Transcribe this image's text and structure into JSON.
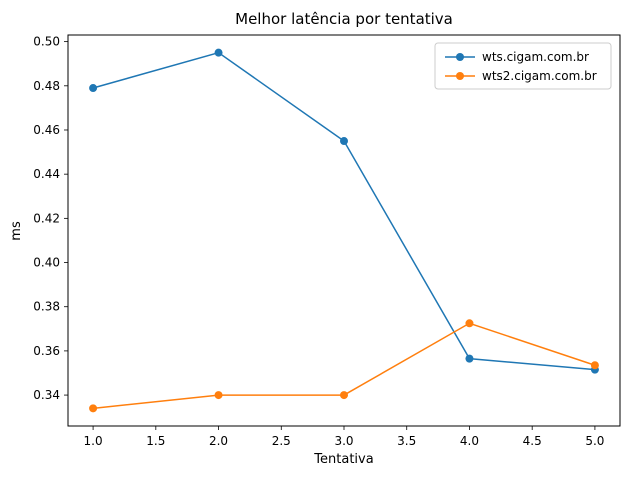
{
  "chart_data": {
    "type": "line",
    "title": "Melhor latência por tentativa",
    "xlabel": "Tentativa",
    "ylabel": "ms",
    "x": [
      1,
      2,
      3,
      4,
      5
    ],
    "series": [
      {
        "name": "wts.cigam.com.br",
        "color": "#1f77b4",
        "values": [
          0.479,
          0.495,
          0.455,
          0.3565,
          0.3515
        ]
      },
      {
        "name": "wts2.cigam.com.br",
        "color": "#ff7f0e",
        "values": [
          0.334,
          0.34,
          0.34,
          0.3725,
          0.3535
        ]
      }
    ],
    "xlim": [
      0.8,
      5.2
    ],
    "ylim": [
      0.326,
      0.503
    ],
    "xticks": [
      "1.0",
      "1.5",
      "2.0",
      "2.5",
      "3.0",
      "3.5",
      "4.0",
      "4.5",
      "5.0"
    ],
    "yticks": [
      "0.34",
      "0.36",
      "0.38",
      "0.40",
      "0.42",
      "0.44",
      "0.46",
      "0.48",
      "0.50"
    ],
    "legend_position": "upper-right",
    "grid": false,
    "background": "#ffffff",
    "frame_color": "#000000"
  }
}
